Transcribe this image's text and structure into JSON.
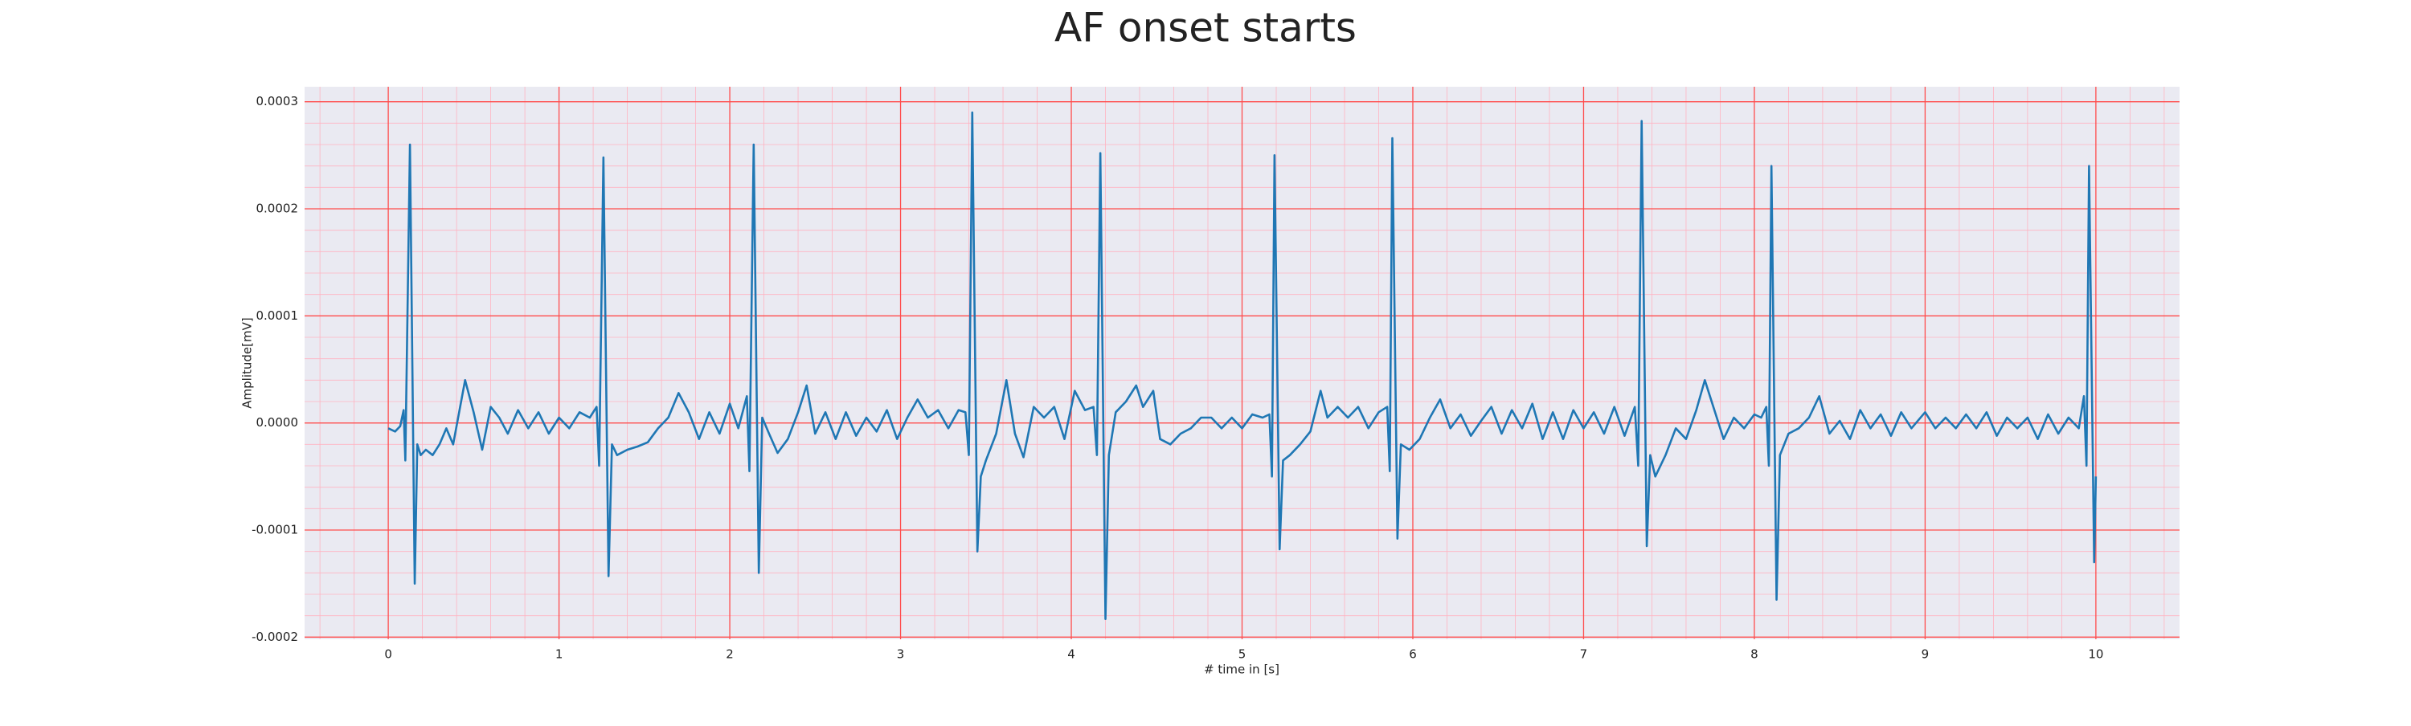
{
  "chart_data": {
    "type": "line",
    "title": "AF onset starts",
    "xlabel": "# time in [s]",
    "ylabel": "Amplitude[mV]",
    "xlim": [
      -0.49,
      10.49
    ],
    "ylim": [
      -0.000202,
      0.000314
    ],
    "xticks": [
      0,
      1,
      2,
      3,
      4,
      5,
      6,
      7,
      8,
      9,
      10
    ],
    "yticks": [
      -0.0002,
      -0.0001,
      {
        "value": 0,
        "label": "0.0000"
      },
      0.0001,
      0.0002,
      0.0003
    ],
    "grid": true,
    "minor_grid": true,
    "grid_color": "#ff4d4d",
    "minor_grid_color": "#ffb3c1",
    "background": "#eaeaf2",
    "series": [
      {
        "color": "#1f77b4",
        "x": [
          0,
          0.04,
          0.07,
          0.09,
          0.1,
          0.127,
          0.155,
          0.17,
          0.19,
          0.22,
          0.26,
          0.3,
          0.34,
          0.38,
          0.45,
          0.5,
          0.55,
          0.6,
          0.65,
          0.7,
          0.76,
          0.82,
          0.88,
          0.94,
          1.0,
          1.06,
          1.12,
          1.18,
          1.22,
          1.235,
          1.26,
          1.29,
          1.31,
          1.34,
          1.4,
          1.46,
          1.52,
          1.58,
          1.64,
          1.7,
          1.76,
          1.82,
          1.88,
          1.94,
          2.0,
          2.05,
          2.1,
          2.115,
          2.14,
          2.17,
          2.19,
          2.23,
          2.28,
          2.34,
          2.4,
          2.45,
          2.5,
          2.56,
          2.62,
          2.68,
          2.74,
          2.8,
          2.86,
          2.92,
          2.98,
          3.04,
          3.1,
          3.16,
          3.22,
          3.28,
          3.34,
          3.38,
          3.4,
          3.42,
          3.45,
          3.47,
          3.5,
          3.56,
          3.62,
          3.67,
          3.72,
          3.78,
          3.84,
          3.9,
          3.96,
          4.02,
          4.08,
          4.13,
          4.15,
          4.17,
          4.2,
          4.22,
          4.26,
          4.32,
          4.38,
          4.42,
          4.48,
          4.52,
          4.58,
          4.64,
          4.7,
          4.76,
          4.82,
          4.88,
          4.94,
          5.0,
          5.06,
          5.12,
          5.16,
          5.175,
          5.19,
          5.22,
          5.24,
          5.28,
          5.34,
          5.4,
          5.46,
          5.5,
          5.56,
          5.62,
          5.68,
          5.74,
          5.8,
          5.85,
          5.865,
          5.88,
          5.91,
          5.93,
          5.98,
          6.04,
          6.1,
          6.16,
          6.22,
          6.28,
          6.34,
          6.4,
          6.46,
          6.52,
          6.58,
          6.64,
          6.7,
          6.76,
          6.82,
          6.88,
          6.94,
          7.0,
          7.06,
          7.12,
          7.18,
          7.24,
          7.3,
          7.32,
          7.34,
          7.37,
          7.39,
          7.42,
          7.48,
          7.54,
          7.6,
          7.66,
          7.71,
          7.76,
          7.82,
          7.88,
          7.94,
          8.0,
          8.04,
          8.07,
          8.085,
          8.1,
          8.13,
          8.15,
          8.2,
          8.26,
          8.32,
          8.38,
          8.44,
          8.5,
          8.56,
          8.62,
          8.68,
          8.74,
          8.8,
          8.86,
          8.92,
          9.0,
          9.06,
          9.12,
          9.18,
          9.24,
          9.3,
          9.36,
          9.42,
          9.48,
          9.54,
          9.6,
          9.66,
          9.72,
          9.78,
          9.84,
          9.9,
          9.93,
          9.945,
          9.96,
          9.99,
          10.0
        ],
        "values": [
          -5e-06,
          -8e-06,
          -3e-06,
          1.2e-05,
          -3.5e-05,
          0.00026,
          -0.00015,
          -2e-05,
          -3e-05,
          -2.5e-05,
          -3e-05,
          -2e-05,
          -5e-06,
          -2e-05,
          4e-05,
          1e-05,
          -2.5e-05,
          1.5e-05,
          5e-06,
          -1e-05,
          1.2e-05,
          -5e-06,
          1e-05,
          -1e-05,
          5e-06,
          -5e-06,
          1e-05,
          5e-06,
          1.5e-05,
          -4e-05,
          0.000248,
          -0.000143,
          -2e-05,
          -3e-05,
          -2.5e-05,
          -2.2e-05,
          -1.8e-05,
          -5e-06,
          5e-06,
          2.8e-05,
          1e-05,
          -1.5e-05,
          1e-05,
          -1e-05,
          1.8e-05,
          -5e-06,
          2.5e-05,
          -4.5e-05,
          0.00026,
          -0.00014,
          5e-06,
          -1e-05,
          -2.8e-05,
          -1.5e-05,
          1e-05,
          3.5e-05,
          -1e-05,
          1e-05,
          -1.5e-05,
          1e-05,
          -1.2e-05,
          5e-06,
          -8e-06,
          1.2e-05,
          -1.5e-05,
          5e-06,
          2.2e-05,
          5e-06,
          1.2e-05,
          -5e-06,
          1.2e-05,
          1e-05,
          -3e-05,
          0.00029,
          -0.00012,
          -5e-05,
          -3.5e-05,
          -1e-05,
          4e-05,
          -1e-05,
          -3.2e-05,
          1.5e-05,
          5e-06,
          1.5e-05,
          -1.5e-05,
          3e-05,
          1.2e-05,
          1.5e-05,
          -3e-05,
          0.000252,
          -0.000183,
          -3e-05,
          1e-05,
          2e-05,
          3.5e-05,
          1.5e-05,
          3e-05,
          -1.5e-05,
          -2e-05,
          -1e-05,
          -5e-06,
          5e-06,
          5e-06,
          -5e-06,
          5e-06,
          -5e-06,
          8e-06,
          5e-06,
          8e-06,
          -5e-05,
          0.00025,
          -0.000118,
          -3.5e-05,
          -3e-05,
          -2e-05,
          -8e-06,
          3e-05,
          5e-06,
          1.5e-05,
          5e-06,
          1.5e-05,
          -5e-06,
          1e-05,
          1.5e-05,
          -4.5e-05,
          0.000266,
          -0.000108,
          -2e-05,
          -2.5e-05,
          -1.5e-05,
          5e-06,
          2.2e-05,
          -5e-06,
          8e-06,
          -1.2e-05,
          2e-06,
          1.5e-05,
          -1e-05,
          1.2e-05,
          -5e-06,
          1.8e-05,
          -1.5e-05,
          1e-05,
          -1.5e-05,
          1.2e-05,
          -5e-06,
          1e-05,
          -1e-05,
          1.5e-05,
          -1.2e-05,
          1.5e-05,
          -4e-05,
          0.000282,
          -0.000115,
          -3e-05,
          -5e-05,
          -3e-05,
          -5e-06,
          -1.5e-05,
          1.2e-05,
          4e-05,
          1.5e-05,
          -1.5e-05,
          5e-06,
          -5e-06,
          8e-06,
          5e-06,
          1.5e-05,
          -4e-05,
          0.00024,
          -0.000165,
          -3e-05,
          -1e-05,
          -5e-06,
          5e-06,
          2.5e-05,
          -1e-05,
          2e-06,
          -1.5e-05,
          1.2e-05,
          -5e-06,
          8e-06,
          -1.2e-05,
          1e-05,
          -5e-06,
          1e-05,
          -5e-06,
          5e-06,
          -5e-06,
          8e-06,
          -5e-06,
          1e-05,
          -1.2e-05,
          5e-06,
          -5e-06,
          5e-06,
          -1.5e-05,
          8e-06,
          -1e-05,
          5e-06,
          -5e-06,
          2.5e-05,
          -4e-05,
          0.00024,
          -0.00013,
          -5e-05
        ]
      }
    ]
  }
}
